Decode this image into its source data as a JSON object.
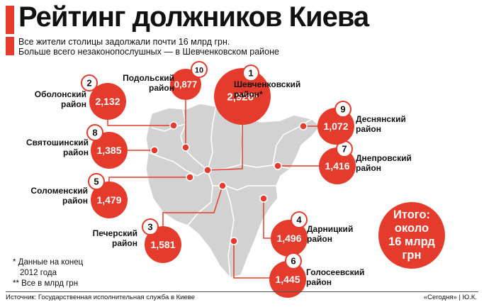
{
  "header": {
    "title": "Рейтинг должников Киева",
    "subtitle_line1": "Все жители столицы задолжали почти 16 млрд грн.",
    "subtitle_line2": "Больше всего незаконопослушных — в Шевченковском районе"
  },
  "districts": [
    {
      "rank": "1",
      "value": "2,926*",
      "name_line1": "Шевченковский",
      "name_line2": "район*"
    },
    {
      "rank": "2",
      "value": "2,132",
      "name_line1": "Оболонский",
      "name_line2": "район"
    },
    {
      "rank": "3",
      "value": "1,581",
      "name_line1": "Печерский",
      "name_line2": "район"
    },
    {
      "rank": "4",
      "value": "1,496",
      "name_line1": "Дарницкий",
      "name_line2": "район"
    },
    {
      "rank": "5",
      "value": "1,479",
      "name_line1": "Соломенский",
      "name_line2": "район"
    },
    {
      "rank": "6",
      "value": "1,445",
      "name_line1": "Голосеевский",
      "name_line2": "район"
    },
    {
      "rank": "7",
      "value": "1,416",
      "name_line1": "Днепровский",
      "name_line2": "район"
    },
    {
      "rank": "8",
      "value": "1,385",
      "name_line1": "Святошинский",
      "name_line2": "район"
    },
    {
      "rank": "9",
      "value": "1,072",
      "name_line1": "Деснянский",
      "name_line2": "район"
    },
    {
      "rank": "10",
      "value": "0,877",
      "name_line1": "Подольский",
      "name_line2": "район"
    }
  ],
  "total": {
    "line1": "Итого:",
    "line2": "около",
    "line3": "16 млрд",
    "line4": "грн"
  },
  "notes": {
    "line1": "* Данные на конец",
    "line2": "2012 года",
    "line3": "** Все в млрд грн"
  },
  "footer": {
    "source": "Источник:  Государственная исполнительная служба в Киеве",
    "credit": "«Сегодня» | Ю.К."
  },
  "colors": {
    "accent": "#e53b2c",
    "map_fill": "#d2d2d2",
    "map_border": "#ffffff"
  }
}
